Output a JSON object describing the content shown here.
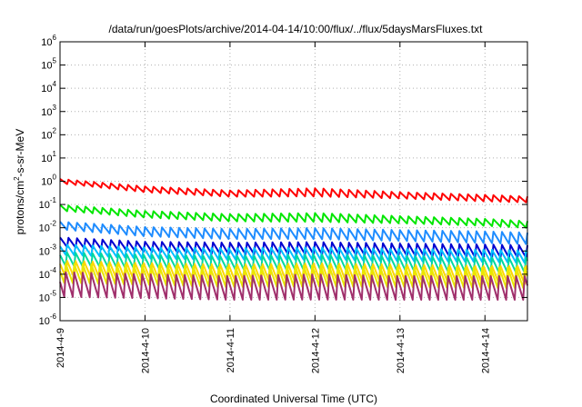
{
  "chart_data": {
    "type": "line",
    "title": "/data/run/goesPlots/archive/2014-04-14/10:00/flux/../flux/5daysMarsFluxes.txt",
    "xlabel": "Coordinated Universal Time (UTC)",
    "ylabel": "protons/cm²-s-sr-MeV",
    "y_scale": "log",
    "ylim": [
      1e-06,
      1000000.0
    ],
    "xlim": [
      "2014-04-09 00:00",
      "2014-04-14 12:00"
    ],
    "x_ticks": [
      "2014-4-9",
      "2014-4-10",
      "2014-4-11",
      "2014-4-12",
      "2014-4-13",
      "2014-4-14"
    ],
    "y_ticks": [
      {
        "base": "10",
        "exp": "-6"
      },
      {
        "base": "10",
        "exp": "-5"
      },
      {
        "base": "10",
        "exp": "-4"
      },
      {
        "base": "10",
        "exp": "-3"
      },
      {
        "base": "10",
        "exp": "-2"
      },
      {
        "base": "10",
        "exp": "-1"
      },
      {
        "base": "10",
        "exp": "0"
      },
      {
        "base": "10",
        "exp": "1"
      },
      {
        "base": "10",
        "exp": "2"
      },
      {
        "base": "10",
        "exp": "3"
      },
      {
        "base": "10",
        "exp": "4"
      },
      {
        "base": "10",
        "exp": "5"
      },
      {
        "base": "10",
        "exp": "6"
      }
    ],
    "grid": true,
    "legend": "none",
    "series": [
      {
        "color": "#ff0000",
        "x": [
          "2014-04-09 00:00",
          "2014-04-10 00:00",
          "2014-04-11 00:00",
          "2014-04-12 00:00",
          "2014-04-13 00:00",
          "2014-04-14 00:00",
          "2014-04-14 12:00"
        ],
        "low": [
          0.75,
          0.3,
          0.19,
          0.19,
          0.16,
          0.12,
          0.11
        ],
        "high": [
          1.25,
          0.6,
          0.4,
          0.5,
          0.34,
          0.26,
          0.22
        ]
      },
      {
        "color": "#00e600",
        "x": [
          "2014-04-09 00:00",
          "2014-04-10 00:00",
          "2014-04-11 00:00",
          "2014-04-12 00:00",
          "2014-04-13 00:00",
          "2014-04-14 00:00",
          "2014-04-14 12:00"
        ],
        "low": [
          0.05,
          0.025,
          0.017,
          0.016,
          0.014,
          0.011,
          0.009
        ],
        "high": [
          0.1,
          0.055,
          0.04,
          0.045,
          0.033,
          0.025,
          0.02
        ]
      },
      {
        "color": "#1e8cff",
        "x": [
          "2014-04-09 00:00",
          "2014-04-10 00:00",
          "2014-04-11 00:00",
          "2014-04-12 00:00",
          "2014-04-13 00:00",
          "2014-04-14 00:00",
          "2014-04-14 12:00"
        ],
        "low": [
          0.008,
          0.004,
          0.003,
          0.003,
          0.0025,
          0.002,
          0.0018
        ],
        "high": [
          0.02,
          0.012,
          0.01,
          0.011,
          0.009,
          0.008,
          0.007
        ]
      },
      {
        "color": "#0000d0",
        "x": [
          "2014-04-09 00:00",
          "2014-04-10 00:00",
          "2014-04-11 00:00",
          "2014-04-12 00:00",
          "2014-04-13 00:00",
          "2014-04-14 00:00",
          "2014-04-14 12:00"
        ],
        "low": [
          0.0015,
          0.0009,
          0.0007,
          0.0007,
          0.0006,
          0.0005,
          0.0005
        ],
        "high": [
          0.0045,
          0.003,
          0.0028,
          0.003,
          0.0026,
          0.0024,
          0.0022
        ]
      },
      {
        "color": "#00c0ff",
        "x": [
          "2014-04-09 00:00",
          "2014-04-10 00:00",
          "2014-04-11 00:00",
          "2014-04-12 00:00",
          "2014-04-13 00:00",
          "2014-04-14 00:00",
          "2014-04-14 12:00"
        ],
        "low": [
          0.0006,
          0.0004,
          0.00035,
          0.00035,
          0.0003,
          0.00028,
          0.00025
        ],
        "high": [
          0.002,
          0.0015,
          0.0014,
          0.0015,
          0.0013,
          0.0012,
          0.0011
        ]
      },
      {
        "color": "#00d8a0",
        "x": [
          "2014-04-09 00:00",
          "2014-04-10 00:00",
          "2014-04-11 00:00",
          "2014-04-12 00:00",
          "2014-04-13 00:00",
          "2014-04-14 00:00",
          "2014-04-14 12:00"
        ],
        "low": [
          0.0002,
          0.00015,
          0.00013,
          0.00013,
          0.00012,
          0.0001,
          0.0001
        ],
        "high": [
          0.001,
          0.0008,
          0.0007,
          0.0008,
          0.0007,
          0.0006,
          0.0006
        ]
      },
      {
        "color": "#ffd700",
        "x": [
          "2014-04-09 00:00",
          "2014-04-10 00:00",
          "2014-04-11 00:00",
          "2014-04-12 00:00",
          "2014-04-13 00:00",
          "2014-04-14 00:00",
          "2014-04-14 12:00"
        ],
        "low": [
          7e-05,
          5e-05,
          4e-05,
          4e-05,
          4e-05,
          3.5e-05,
          3.5e-05
        ],
        "high": [
          0.0005,
          0.0004,
          0.00035,
          0.0004,
          0.00035,
          0.0003,
          0.0003
        ]
      },
      {
        "color": "#e8e800",
        "x": [
          "2014-04-09 00:00",
          "2014-04-10 00:00",
          "2014-04-11 00:00",
          "2014-04-12 00:00",
          "2014-04-13 00:00",
          "2014-04-14 00:00",
          "2014-04-14 12:00"
        ],
        "low": [
          3e-05,
          2.5e-05,
          2e-05,
          2e-05,
          2e-05,
          1.8e-05,
          1.8e-05
        ],
        "high": [
          0.0003,
          0.00025,
          0.0002,
          0.00025,
          0.0002,
          0.0002,
          0.0002
        ]
      },
      {
        "color": "#a0306c",
        "x": [
          "2014-04-09 00:00",
          "2014-04-10 00:00",
          "2014-04-11 00:00",
          "2014-04-12 00:00",
          "2014-04-13 00:00",
          "2014-04-14 00:00",
          "2014-04-14 12:00"
        ],
        "low": [
          8e-06,
          7e-06,
          6e-06,
          6e-06,
          6e-06,
          6e-06,
          6e-06
        ],
        "high": [
          0.00015,
          0.00012,
          0.0001,
          0.00012,
          0.0001,
          0.0001,
          0.0001
        ]
      }
    ]
  }
}
